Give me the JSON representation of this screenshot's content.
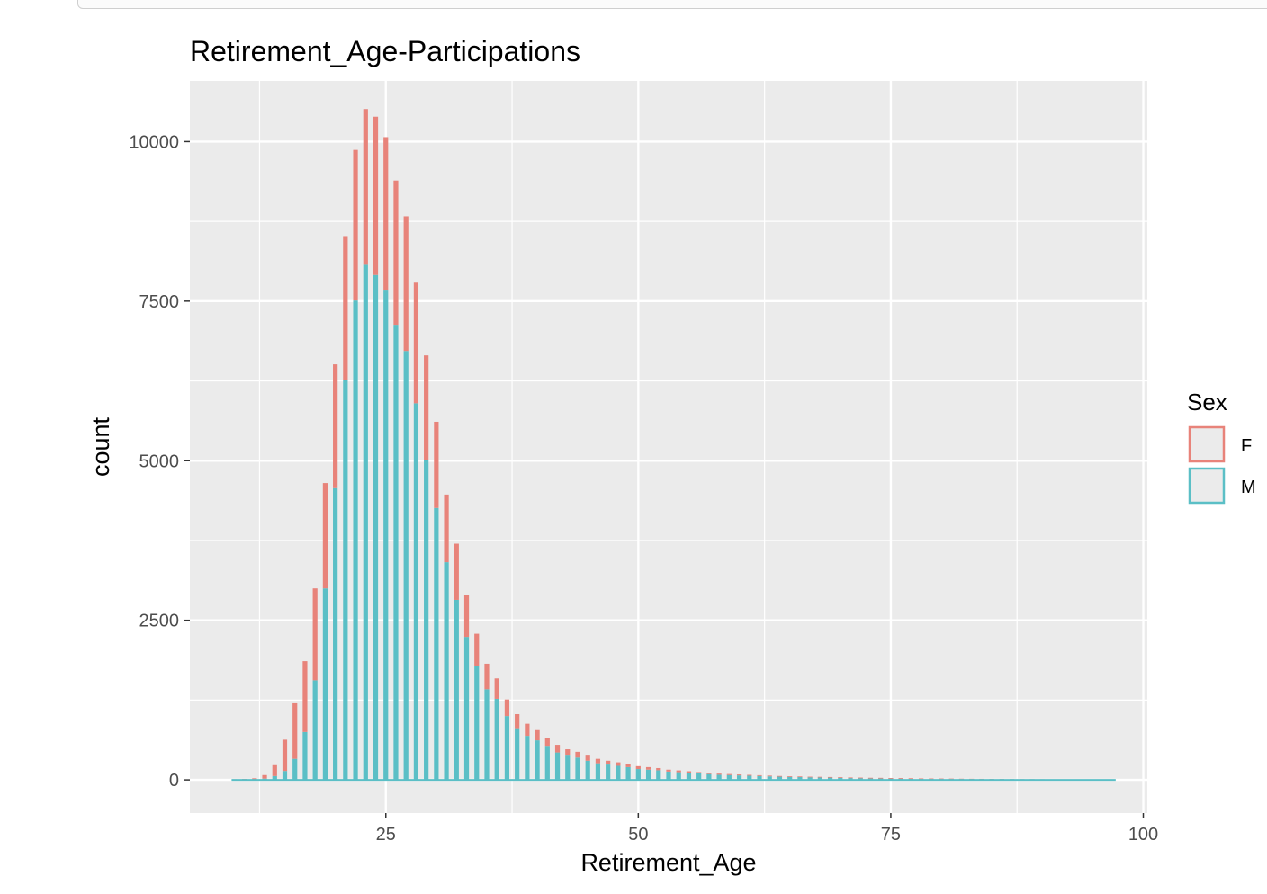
{
  "chart_data": {
    "type": "bar",
    "title": "Retirement_Age-Participations",
    "xlabel": "Retirement_Age",
    "ylabel": "count",
    "stacked": true,
    "xlim": [
      5.6,
      100.4
    ],
    "ylim": [
      -520,
      10950
    ],
    "x_ticks": [
      25,
      50,
      75,
      100
    ],
    "y_ticks": [
      0,
      2500,
      5000,
      7500,
      10000
    ],
    "grid": true,
    "legend": {
      "title": "Sex",
      "position": "right",
      "entries": [
        "F",
        "M"
      ]
    },
    "colors": {
      "F": "#e8837a",
      "M": "#5bbfc6",
      "panel": "#ebebeb",
      "grid": "#ffffff"
    },
    "x": [
      10,
      11,
      12,
      13,
      14,
      15,
      16,
      17,
      18,
      19,
      20,
      21,
      22,
      23,
      24,
      25,
      26,
      27,
      28,
      29,
      30,
      31,
      32,
      33,
      34,
      35,
      36,
      37,
      38,
      39,
      40,
      41,
      42,
      43,
      44,
      45,
      46,
      47,
      48,
      49,
      50,
      51,
      52,
      53,
      54,
      55,
      56,
      57,
      58,
      59,
      60,
      61,
      62,
      63,
      64,
      65,
      66,
      67,
      68,
      69,
      70,
      71,
      72,
      73,
      74,
      75,
      76,
      77,
      78,
      79,
      80,
      81,
      82,
      83,
      84,
      85,
      86,
      87,
      88,
      89,
      90,
      91,
      92,
      93,
      94,
      95,
      96,
      97
    ],
    "series": [
      {
        "name": "M",
        "values": [
          0,
          0,
          5,
          20,
          60,
          140,
          330,
          750,
          1560,
          3000,
          4570,
          6260,
          7510,
          8070,
          7910,
          7680,
          7130,
          6720,
          5900,
          5010,
          4260,
          3410,
          2820,
          2240,
          1790,
          1420,
          1270,
          1000,
          810,
          690,
          620,
          520,
          430,
          380,
          350,
          300,
          260,
          240,
          220,
          200,
          170,
          160,
          150,
          130,
          120,
          110,
          100,
          90,
          80,
          75,
          70,
          65,
          60,
          55,
          50,
          47,
          45,
          42,
          40,
          38,
          35,
          32,
          30,
          28,
          27,
          25,
          24,
          22,
          20,
          19,
          18,
          17,
          16,
          15,
          14,
          13,
          12,
          11,
          10,
          10,
          9,
          8,
          8,
          7,
          7,
          6,
          6,
          5
        ]
      },
      {
        "name": "F",
        "values": [
          10,
          15,
          20,
          55,
          170,
          490,
          870,
          1110,
          1440,
          1650,
          1940,
          2260,
          2360,
          2440,
          2480,
          2390,
          2260,
          2110,
          1890,
          1640,
          1350,
          1060,
          880,
          660,
          500,
          400,
          320,
          260,
          220,
          190,
          160,
          140,
          120,
          100,
          90,
          80,
          70,
          60,
          55,
          50,
          45,
          40,
          35,
          30,
          28,
          25,
          22,
          20,
          18,
          16,
          15,
          14,
          13,
          12,
          11,
          10,
          9,
          8,
          8,
          7,
          7,
          6,
          6,
          5,
          5,
          4,
          4,
          4,
          3,
          3,
          3,
          3,
          2,
          2,
          2,
          2,
          2,
          1,
          1,
          1,
          1,
          1,
          1,
          1,
          1,
          1,
          1,
          1
        ]
      }
    ]
  }
}
